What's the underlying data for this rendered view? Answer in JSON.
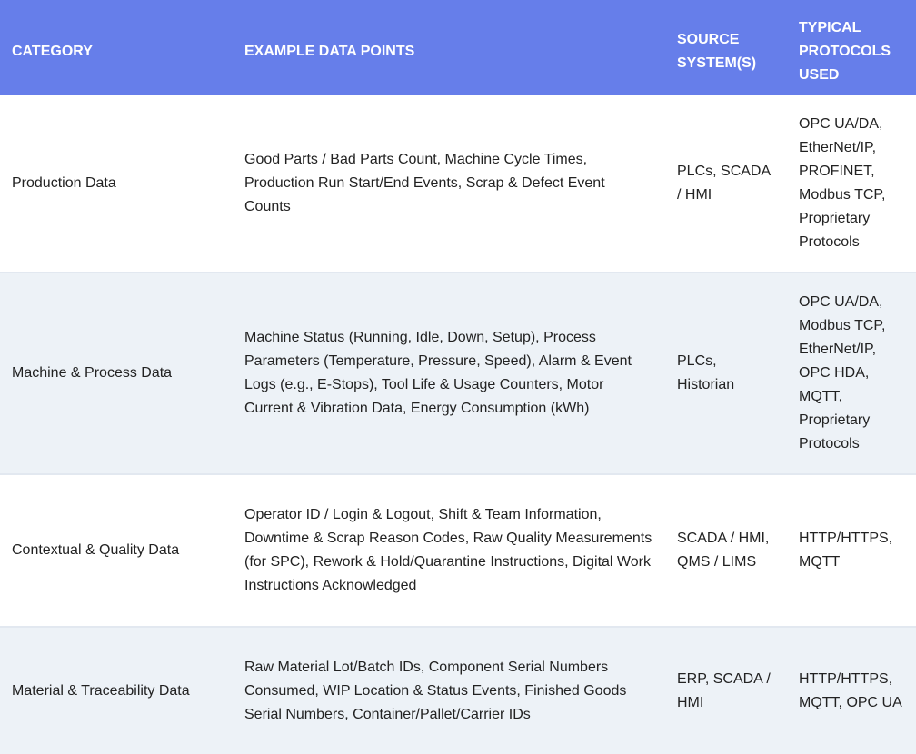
{
  "header": {
    "category": "CATEGORY",
    "examples": "EXAMPLE DATA POINTS",
    "source": "SOURCE SYSTEM(S)",
    "protocols": "TYPICAL PROTOCOLS USED"
  },
  "header_color": "#667eea",
  "rows": [
    {
      "category": "Production Data",
      "examples": "Good Parts / Bad Parts Count, Machine Cycle Times, Production Run Start/End Events, Scrap & Defect Event Counts",
      "source": "PLCs, SCADA / HMI",
      "protocols": "OPC UA/DA, EtherNet/IP, PROFINET, Modbus TCP, Proprietary Protocols"
    },
    {
      "category": "Machine & Process Data",
      "examples": "Machine Status (Running, Idle, Down, Setup), Process Parameters (Temperature, Pressure, Speed), Alarm & Event Logs (e.g., E-Stops), Tool Life & Usage Counters, Motor Current & Vibration Data, Energy Consumption (kWh)",
      "source": "PLCs, Historian",
      "protocols": "OPC UA/DA, Modbus TCP, EtherNet/IP, OPC HDA, MQTT, Proprietary Protocols"
    },
    {
      "category": "Contextual & Quality Data",
      "examples": "Operator ID / Login & Logout, Shift & Team Information, Downtime & Scrap Reason Codes, Raw Quality Measurements (for SPC), Rework & Hold/Quarantine Instructions, Digital Work Instructions Acknowledged",
      "source": "SCADA / HMI, QMS / LIMS",
      "protocols": "HTTP/HTTPS, MQTT"
    },
    {
      "category": "Material & Traceability Data",
      "examples": "Raw Material Lot/Batch IDs, Component Serial Numbers Consumed, WIP Location & Status Events, Finished Goods Serial Numbers, Container/Pallet/Carrier IDs",
      "source": "ERP, SCADA / HMI",
      "protocols": "HTTP/HTTPS, MQTT, OPC UA"
    }
  ]
}
